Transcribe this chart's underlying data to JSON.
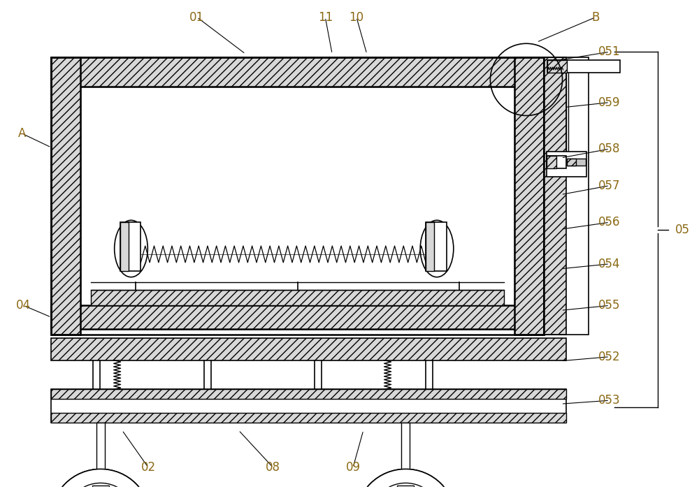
{
  "bg_color": "#ffffff",
  "line_color": "#000000",
  "label_color": "#8B6914",
  "fig_width": 10.0,
  "fig_height": 7.0
}
